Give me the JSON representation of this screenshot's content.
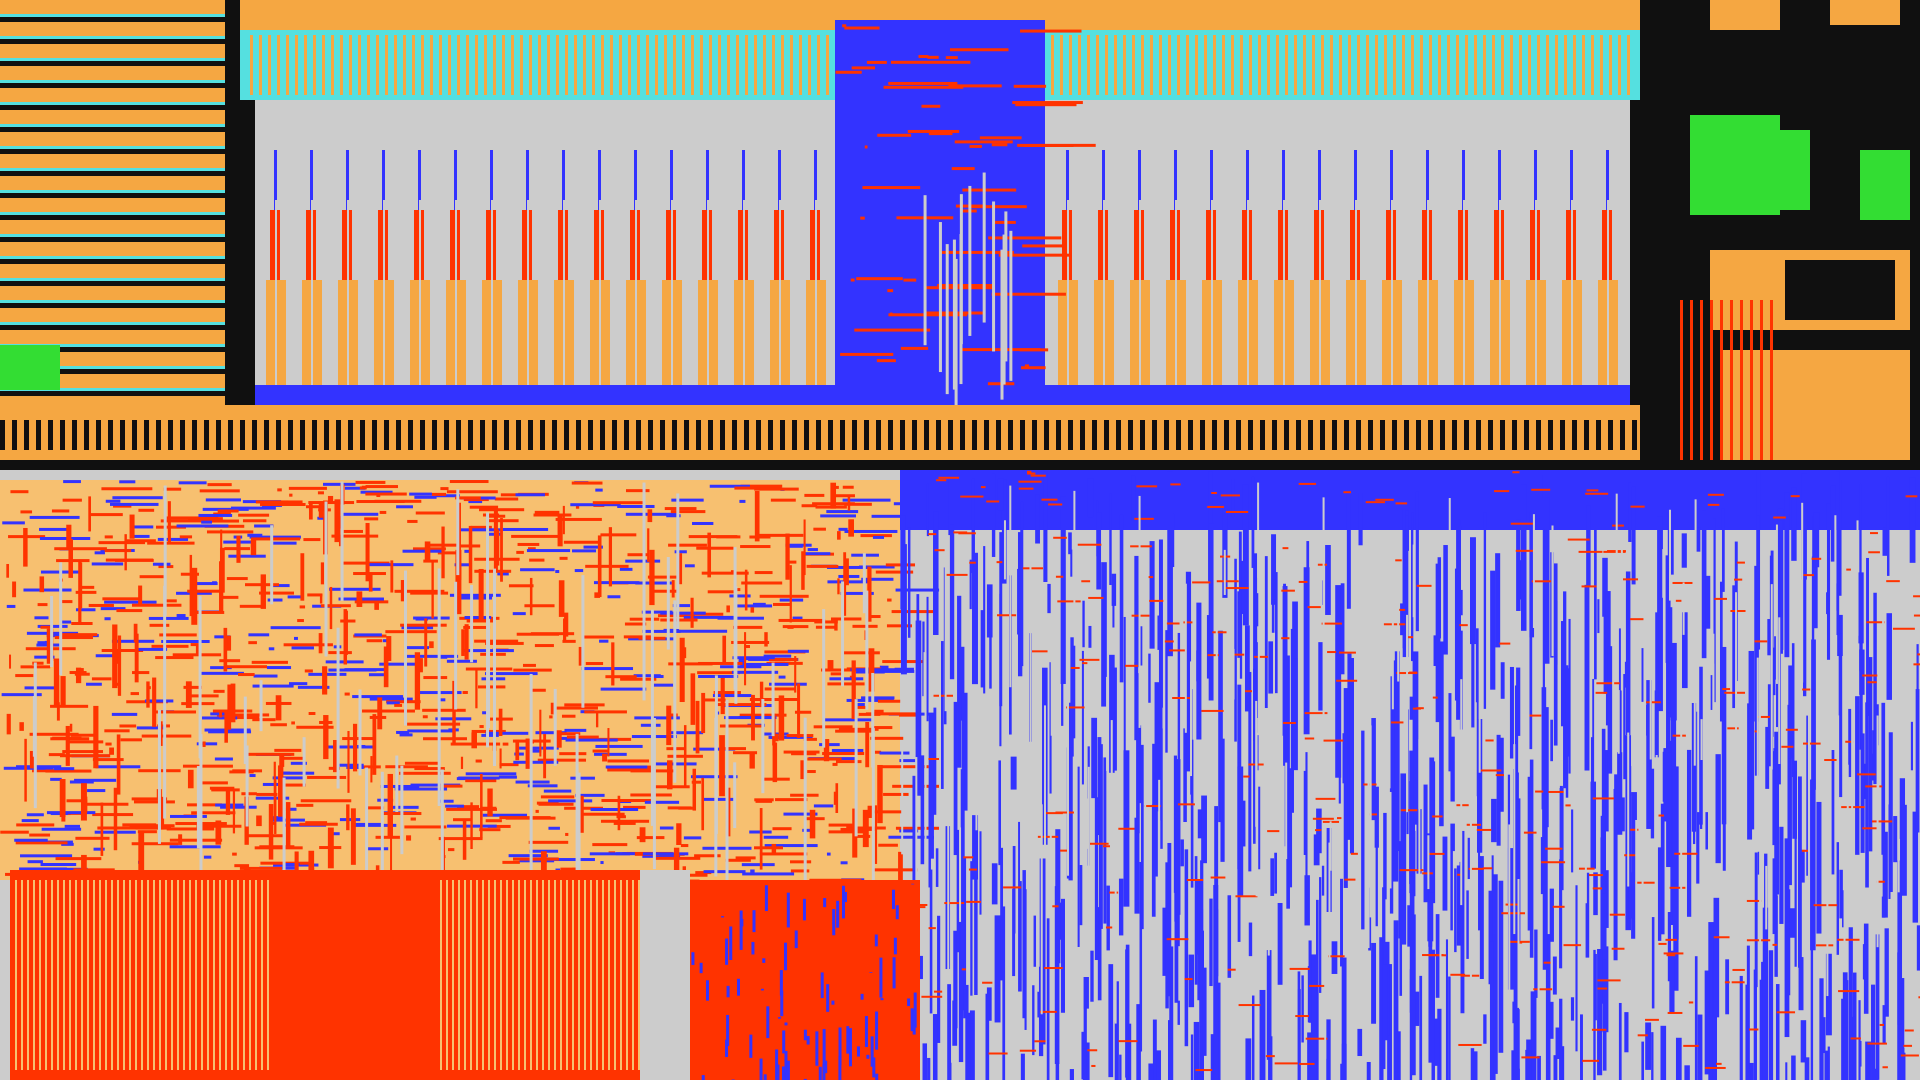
{
  "layout_view": {
    "colors": {
      "background_gray": "#cccccc",
      "metal_orange": "#f5a742",
      "metal_red": "#ff3300",
      "metal_blue": "#3333ff",
      "metal_cyan": "#55e0e0",
      "diffusion_green": "#33dd33",
      "tan": "#f7c070",
      "black": "#101010"
    }
  }
}
